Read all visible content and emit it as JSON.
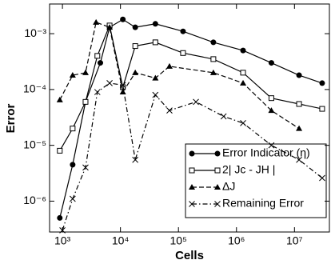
{
  "chart_data": {
    "type": "line",
    "x_label": "Cells",
    "y_label": "Error",
    "log_x": true,
    "log_y": true,
    "xlim": [
      600,
      40000000
    ],
    "ylim": [
      2.8e-07,
      0.0034
    ],
    "xticks": [
      {
        "value": 1000,
        "label": "10³"
      },
      {
        "value": 10000,
        "label": "10⁴"
      },
      {
        "value": 100000,
        "label": "10⁵"
      },
      {
        "value": 1000000,
        "label": "10⁶"
      },
      {
        "value": 10000000,
        "label": "10⁷"
      }
    ],
    "yticks": [
      {
        "value": 1e-06,
        "label": "10⁻⁶"
      },
      {
        "value": 1e-05,
        "label": "10⁻⁵"
      },
      {
        "value": 0.0001,
        "label": "10⁻⁴"
      },
      {
        "value": 0.001,
        "label": "10⁻³"
      }
    ],
    "legend": "lower right",
    "series": [
      {
        "name": "Error Indicator (η)",
        "color": "#000000",
        "marker": "circle",
        "dash": "solid",
        "x": [
          900,
          1500,
          2500,
          4500,
          6500,
          11000,
          18000,
          40000,
          120000,
          400000,
          1300000,
          4000000,
          12000000,
          30000000
        ],
        "values": [
          5e-07,
          4.5e-06,
          6e-05,
          0.0003,
          0.0013,
          0.0018,
          0.0013,
          0.0015,
          0.0011,
          0.0007,
          0.0005,
          0.0003,
          0.00018,
          0.00013
        ]
      },
      {
        "name": "2| Jc - JH |",
        "color": "#000000",
        "marker": "square",
        "dash": "solid",
        "x": [
          900,
          1500,
          2500,
          4000,
          6500,
          11000,
          18000,
          40000,
          120000,
          400000,
          1300000,
          4000000,
          12000000,
          30000000
        ],
        "values": [
          8e-06,
          2e-05,
          6e-05,
          0.0004,
          0.0014,
          0.00011,
          0.0006,
          0.0007,
          0.00045,
          0.00035,
          0.0002,
          7e-05,
          5.5e-05,
          4.5e-05
        ]
      },
      {
        "name": "ΔJ",
        "color": "#000000",
        "marker": "triangle",
        "dash": "dashed",
        "x": [
          900,
          1500,
          2500,
          3800,
          6500,
          11000,
          18000,
          40000,
          70000,
          400000,
          1300000,
          4000000,
          12000000
        ],
        "values": [
          6.5e-05,
          0.00018,
          0.0002,
          0.0016,
          0.0013,
          9e-05,
          0.0002,
          0.00016,
          0.00026,
          0.0002,
          0.00013,
          4.2e-05,
          2e-05
        ]
      },
      {
        "name": "Remaining Error",
        "color": "#000000",
        "marker": "x",
        "dash": "dashdot",
        "x": [
          1000,
          1500,
          2500,
          4000,
          6500,
          11000,
          18000,
          40000,
          70000,
          200000,
          600000,
          1300000,
          4000000,
          12000000,
          30000000
        ],
        "values": [
          3e-07,
          1.1e-06,
          4e-06,
          9e-05,
          0.00013,
          0.00012,
          5.5e-06,
          8e-05,
          4.2e-05,
          6e-05,
          3.3e-05,
          2.5e-05,
          1e-05,
          5.5e-06,
          2.6e-06
        ]
      }
    ]
  }
}
